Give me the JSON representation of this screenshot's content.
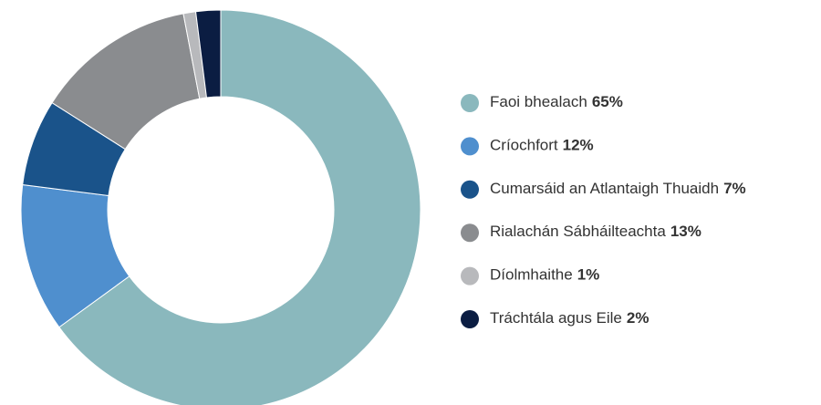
{
  "chart_data": {
    "type": "pie",
    "donut": true,
    "categories": [
      "Faoi bhealach",
      "Críochfort",
      "Cumarsáid an Atlantaigh Thuaidh",
      "Rialachán Sábháilteachta",
      "Díolmhaithe",
      "Tráchtála agus Eile"
    ],
    "values": [
      65,
      12,
      7,
      13,
      1,
      2
    ],
    "value_labels": [
      "65%",
      "12%",
      "7%",
      "13%",
      "1%",
      "2%"
    ],
    "colors": [
      "#8ab8bd",
      "#4f8fce",
      "#1a538a",
      "#8a8c8f",
      "#b8b9bc",
      "#0b1d42"
    ]
  }
}
